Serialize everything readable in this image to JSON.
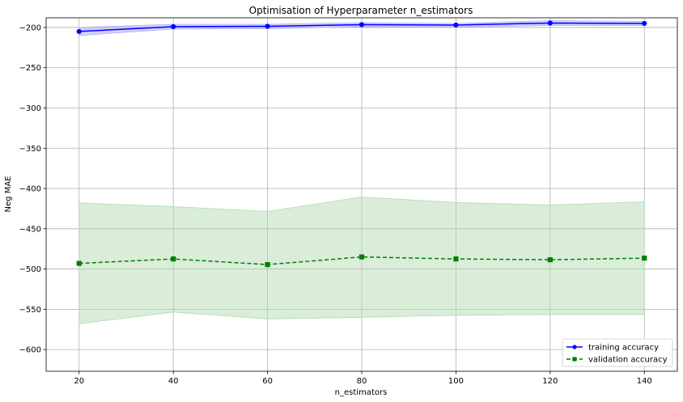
{
  "chart_data": {
    "type": "line",
    "title": "Optimisation of Hyperparameter n_estimators",
    "xlabel": "n_estimators",
    "ylabel": "Neg MAE",
    "x": [
      20,
      40,
      60,
      80,
      100,
      120,
      140
    ],
    "xlim": [
      13,
      147
    ],
    "ylim": [
      -627,
      -188
    ],
    "xticks": [
      20,
      40,
      60,
      80,
      100,
      120,
      140
    ],
    "yticks": [
      -200,
      -250,
      -300,
      -350,
      -400,
      -450,
      -500,
      -550,
      -600
    ],
    "grid": true,
    "legend_position": "lower-right",
    "series": [
      {
        "name": "training accuracy",
        "values": [
          -205,
          -199,
          -198.5,
          -196.5,
          -197,
          -194.5,
          -195
        ],
        "band_upper": [
          -200,
          -196,
          -196,
          -194,
          -195,
          -191.5,
          -192.5
        ],
        "band_lower": [
          -210,
          -202,
          -201.5,
          -199,
          -199.5,
          -197.5,
          -197.5
        ],
        "color": "#0000ff",
        "band_color": "#b3b3ff",
        "linestyle": "solid",
        "marker": "circle"
      },
      {
        "name": "validation accuracy",
        "values": [
          -493,
          -487.5,
          -494.5,
          -485,
          -487.5,
          -488.5,
          -486.5
        ],
        "band_upper": [
          -418,
          -422.5,
          -428.5,
          -410.5,
          -417.5,
          -420.5,
          -416.5
        ],
        "band_lower": [
          -568,
          -553.5,
          -562,
          -560,
          -557.5,
          -556.5,
          -556.5
        ],
        "color": "#008000",
        "band_color": "#b3dbb3",
        "linestyle": "dashed",
        "marker": "square"
      }
    ]
  }
}
